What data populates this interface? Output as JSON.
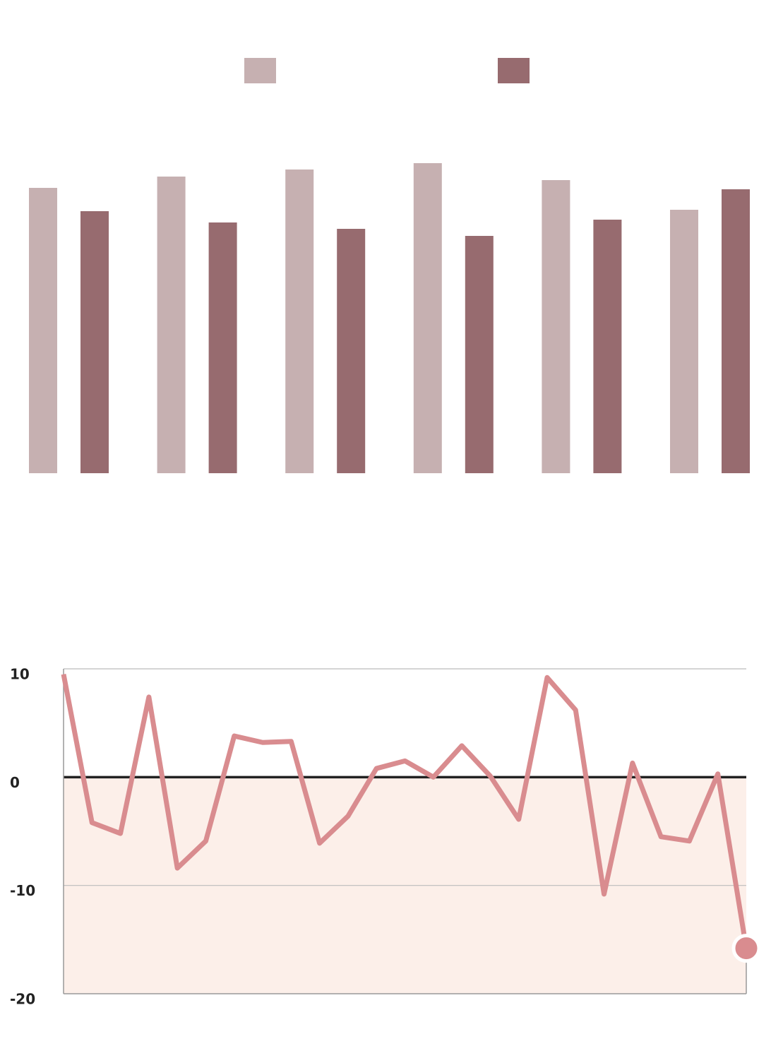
{
  "chart_data": [
    {
      "type": "bar",
      "series": [
        {
          "color": "#c6b0b1",
          "values": [
            404,
            420,
            430,
            439,
            415,
            373
          ]
        },
        {
          "color": "#976b6f",
          "values": [
            371,
            355,
            346,
            336,
            359,
            402
          ]
        }
      ],
      "ylim": [
        0,
        500
      ]
    },
    {
      "type": "line",
      "series": [
        {
          "color": "#d98c8f",
          "values": [
            9.5,
            -4.2,
            -5.2,
            7.4,
            -8.4,
            -5.9,
            3.8,
            3.2,
            3.3,
            -6.1,
            -3.6,
            0.8,
            1.5,
            0,
            2.9,
            0.1,
            -3.9,
            9.2,
            6.2,
            -10.8,
            1.3,
            -5.5,
            -5.9,
            0.3,
            -15.8
          ]
        }
      ],
      "ylim": [
        -20,
        10
      ],
      "yticks": [
        10,
        0,
        -10,
        -20
      ],
      "grid": true,
      "negative_fill": "#fcefe9",
      "end_marker": true
    }
  ]
}
